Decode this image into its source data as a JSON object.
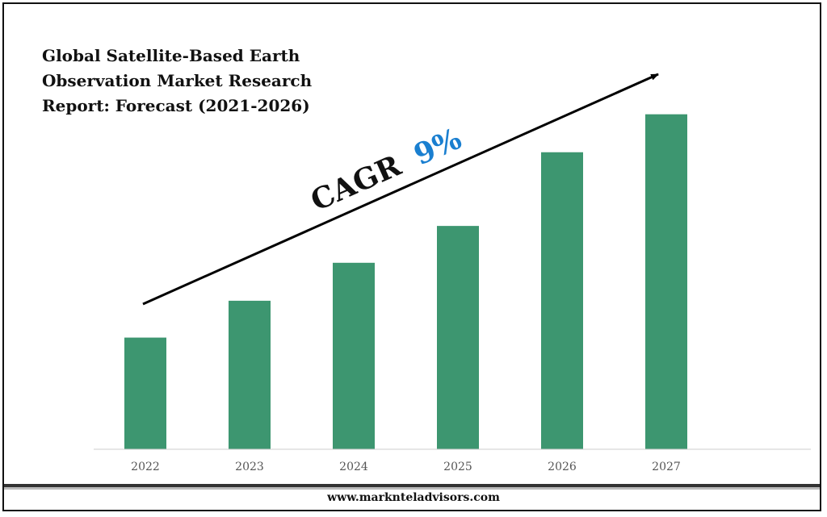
{
  "chart_data": {
    "type": "bar",
    "title_lines": [
      "Global Satellite-Based Earth",
      "Observation Market Research",
      "Report: Forecast (2021-2026)"
    ],
    "categories": [
      "2022",
      "2023",
      "2024",
      "2025",
      "2026",
      "2027"
    ],
    "values": [
      1.0,
      1.33,
      1.67,
      2.0,
      2.66,
      3.0
    ],
    "ylim": [
      0,
      3.2
    ],
    "xlabel": "",
    "ylabel": "",
    "grid": false,
    "annotation": {
      "prefix": "CAGR",
      "value": "9%"
    },
    "colors": {
      "bar": "#3d9670",
      "axis": "#cccccc",
      "arrow": "#000000",
      "cagr_value": "#1a7fd0",
      "tick_label": "#555555"
    }
  },
  "footer": {
    "url": "www.marknteladvisors.com"
  }
}
